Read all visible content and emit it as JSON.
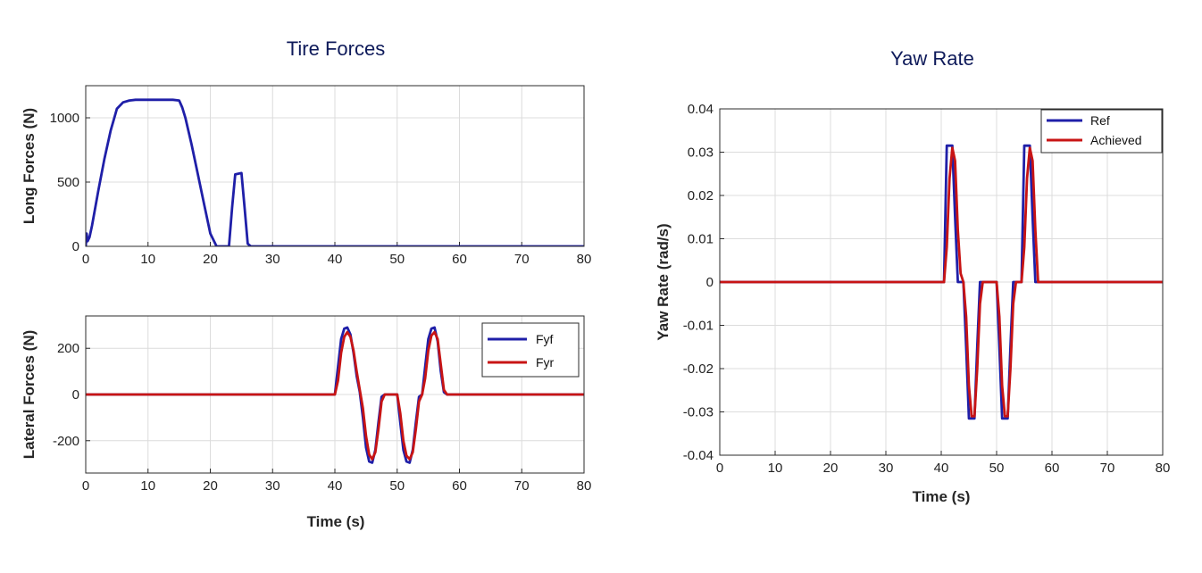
{
  "chart_data": [
    {
      "type": "line",
      "panel": "long",
      "title": "Tire Forces",
      "xlabel": "",
      "ylabel": "Long Forces (N)",
      "xlim": [
        0,
        80
      ],
      "ylim": [
        0,
        1250
      ],
      "xticks": [
        "0",
        "10",
        "20",
        "30",
        "40",
        "50",
        "60",
        "70",
        "80"
      ],
      "yticks": [
        "0",
        "500",
        "1000"
      ],
      "grid": true,
      "series": [
        {
          "name": "",
          "color": "#1f1fa8",
          "x": [
            0,
            0.15,
            0.3,
            0.6,
            1,
            2,
            3,
            4,
            5,
            6,
            7,
            8,
            10,
            14,
            15,
            15.5,
            16,
            17,
            18,
            19,
            20,
            21,
            22,
            23,
            23.5,
            24,
            25,
            25.5,
            26,
            26.5,
            30,
            40,
            50,
            60,
            70,
            80
          ],
          "y": [
            0,
            100,
            40,
            70,
            160,
            430,
            680,
            900,
            1070,
            1120,
            1135,
            1140,
            1140,
            1140,
            1135,
            1080,
            1000,
            790,
            560,
            330,
            100,
            0,
            0,
            0,
            300,
            560,
            570,
            300,
            20,
            0,
            0,
            0,
            0,
            0,
            0,
            0
          ]
        }
      ]
    },
    {
      "type": "line",
      "panel": "lat",
      "title": "",
      "xlabel": "Time (s)",
      "ylabel": "Lateral Forces (N)",
      "xlim": [
        0,
        80
      ],
      "ylim": [
        -340,
        340
      ],
      "xticks": [
        "0",
        "10",
        "20",
        "30",
        "40",
        "50",
        "60",
        "70",
        "80"
      ],
      "yticks": [
        "200",
        "0",
        "-200"
      ],
      "grid": true,
      "legend": "top-right",
      "series": [
        {
          "name": "Fyf",
          "color": "#1f1fa8",
          "x": [
            0,
            40,
            40.5,
            41,
            41.5,
            42,
            42.5,
            43,
            43.5,
            44,
            44.5,
            45,
            45.5,
            46,
            46.5,
            47,
            47.5,
            48,
            49,
            50,
            50.5,
            51,
            51.5,
            52,
            52.5,
            53,
            53.5,
            54,
            54.5,
            55,
            55.5,
            56,
            56.5,
            57,
            57.5,
            58,
            80
          ],
          "y": [
            0,
            0,
            120,
            240,
            285,
            290,
            260,
            180,
            80,
            10,
            -100,
            -230,
            -290,
            -295,
            -240,
            -120,
            -10,
            0,
            0,
            0,
            -120,
            -240,
            -290,
            -295,
            -240,
            -120,
            -10,
            0,
            120,
            240,
            285,
            290,
            230,
            100,
            10,
            0,
            0
          ]
        },
        {
          "name": "Fyr",
          "color": "#c81414",
          "x": [
            0,
            40,
            40.5,
            41,
            41.5,
            42,
            42.5,
            43,
            43.5,
            44,
            44.5,
            45,
            45.5,
            46,
            46.5,
            47,
            47.5,
            48,
            49,
            50,
            50.5,
            51,
            51.5,
            52,
            52.5,
            53,
            53.5,
            54,
            54.5,
            55,
            55.5,
            56,
            56.5,
            57,
            57.5,
            58,
            80
          ],
          "y": [
            0,
            0,
            60,
            180,
            250,
            270,
            250,
            190,
            100,
            20,
            -60,
            -180,
            -260,
            -280,
            -250,
            -150,
            -30,
            0,
            0,
            0,
            -80,
            -200,
            -265,
            -280,
            -250,
            -150,
            -30,
            0,
            70,
            190,
            255,
            270,
            240,
            130,
            20,
            0,
            0
          ]
        }
      ]
    },
    {
      "type": "line",
      "panel": "yaw",
      "title": "Yaw Rate",
      "xlabel": "Time (s)",
      "ylabel": "Yaw Rate (rad/s)",
      "xlim": [
        0,
        80
      ],
      "ylim": [
        -0.04,
        0.04
      ],
      "xticks": [
        "0",
        "10",
        "20",
        "30",
        "40",
        "50",
        "60",
        "70",
        "80"
      ],
      "yticks": [
        "0.04",
        "0.03",
        "0.02",
        "0.01",
        "0",
        "-0.01",
        "-0.02",
        "-0.03",
        "-0.04"
      ],
      "grid": true,
      "legend": "top-right",
      "series": [
        {
          "name": "Ref",
          "color": "#1f1fa8",
          "x": [
            0,
            40.5,
            41,
            42,
            42.5,
            43,
            44,
            44.5,
            45,
            46,
            46.5,
            47,
            50,
            50.5,
            51,
            52,
            52.5,
            53,
            54.5,
            55,
            56,
            56.5,
            57,
            80
          ],
          "y": [
            0,
            0,
            0.0315,
            0.0315,
            0.015,
            0,
            0,
            -0.015,
            -0.0315,
            -0.0315,
            -0.015,
            0,
            0,
            -0.015,
            -0.0315,
            -0.0315,
            -0.015,
            0,
            0,
            0.0315,
            0.0315,
            0.015,
            0,
            0
          ]
        },
        {
          "name": "Achieved",
          "color": "#c81414",
          "x": [
            0,
            40.5,
            41,
            41.5,
            42,
            42.5,
            43,
            43.5,
            44,
            44.5,
            45,
            45.5,
            46,
            46.5,
            47,
            47.5,
            50,
            50.5,
            51,
            51.5,
            52,
            52.5,
            53,
            53.5,
            54.5,
            55,
            55.5,
            56,
            56.5,
            57,
            57.5,
            80
          ],
          "y": [
            0,
            0,
            0.008,
            0.024,
            0.031,
            0.028,
            0.012,
            0.002,
            0,
            -0.008,
            -0.024,
            -0.031,
            -0.031,
            -0.02,
            -0.005,
            0,
            0,
            -0.008,
            -0.024,
            -0.031,
            -0.031,
            -0.02,
            -0.005,
            0,
            0,
            0.008,
            0.024,
            0.031,
            0.028,
            0.012,
            0,
            0
          ]
        }
      ]
    }
  ]
}
